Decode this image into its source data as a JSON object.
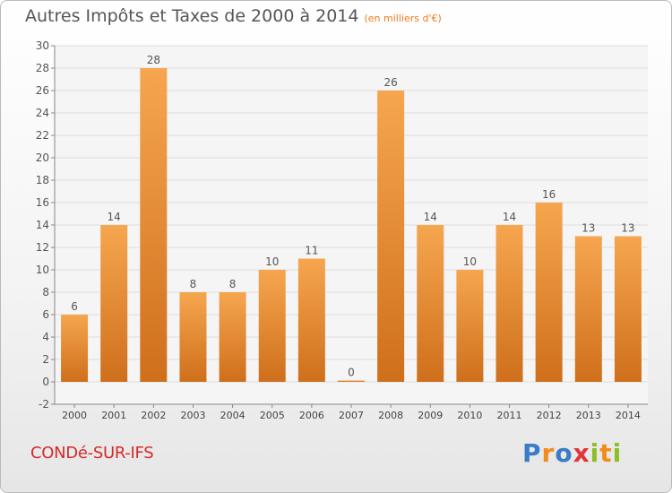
{
  "header": {
    "title": "Autres Impôts et Taxes de 2000 à 2014",
    "subtitle": "(en milliers d'€)"
  },
  "footer": {
    "commune": "CONDé-SUR-IFS",
    "logo": "Proxiti"
  },
  "colors": {
    "bar_light": "#f6a64f",
    "bar_dark": "#cf6f1b",
    "grid": "#dddddd",
    "axis": "#888888",
    "title": "#555555",
    "commune": "#d42a2a"
  },
  "chart_data": {
    "type": "bar",
    "title": "Autres Impôts et Taxes de 2000 à 2014",
    "subtitle": "(en milliers d'€)",
    "categories": [
      "2000",
      "2001",
      "2002",
      "2003",
      "2004",
      "2005",
      "2006",
      "2007",
      "2008",
      "2009",
      "2010",
      "2011",
      "2012",
      "2013",
      "2014"
    ],
    "values": [
      6,
      14,
      28,
      8,
      8,
      10,
      11,
      0,
      26,
      14,
      10,
      14,
      16,
      13,
      13
    ],
    "ylim": [
      -2,
      30
    ],
    "yticks": [
      -2,
      0,
      2,
      4,
      6,
      8,
      10,
      12,
      14,
      16,
      18,
      20,
      22,
      24,
      26,
      28,
      30
    ],
    "xlabel": "",
    "ylabel": "",
    "grid": true
  }
}
